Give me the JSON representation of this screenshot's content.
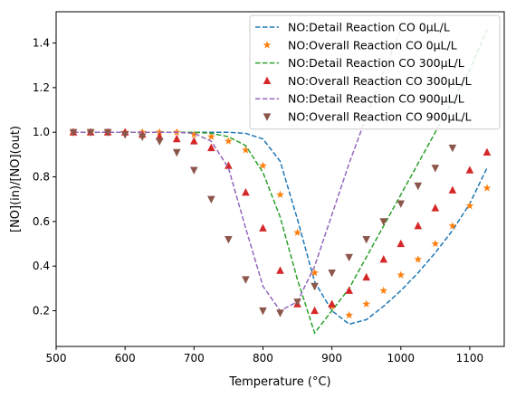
{
  "chart_data": {
    "type": "scatter",
    "xlabel": "Temperature (°C)",
    "ylabel": "[NO](in)/[NO](out)",
    "xlim": [
      500,
      1150
    ],
    "ylim": [
      0.04,
      1.54
    ],
    "xticks": [
      500,
      600,
      700,
      800,
      900,
      1000,
      1100
    ],
    "yticks": [
      0.2,
      0.4,
      0.6,
      0.8,
      1.0,
      1.2,
      1.4
    ],
    "xtick_labels": [
      "500",
      "600",
      "700",
      "800",
      "900",
      "1000",
      "1100"
    ],
    "ytick_labels": [
      "0.2",
      "0.4",
      "0.6",
      "0.8",
      "1.0",
      "1.2",
      "1.4"
    ],
    "grid": false,
    "legend_position": "top-right",
    "series": [
      {
        "name": "NO:Detail Reaction CO 0μL/L",
        "style": "dashed-line",
        "color": "#1f77b4",
        "x": [
          525,
          550,
          575,
          600,
          625,
          650,
          675,
          700,
          725,
          750,
          775,
          800,
          825,
          850,
          875,
          900,
          925,
          950,
          975,
          1000,
          1025,
          1050,
          1075,
          1100,
          1125
        ],
        "y": [
          1.0,
          1.0,
          1.0,
          1.0,
          1.0,
          1.0,
          1.0,
          1.0,
          1.0,
          1.0,
          0.995,
          0.97,
          0.87,
          0.61,
          0.33,
          0.2,
          0.14,
          0.16,
          0.22,
          0.29,
          0.37,
          0.46,
          0.56,
          0.68,
          0.84
        ]
      },
      {
        "name": "NO:Overall Reaction CO 0μL/L",
        "style": "star-markers",
        "color": "#ff7f0e",
        "x": [
          525,
          550,
          575,
          600,
          625,
          650,
          675,
          700,
          725,
          750,
          775,
          800,
          825,
          850,
          875,
          900,
          925,
          950,
          975,
          1000,
          1025,
          1050,
          1075,
          1100,
          1125
        ],
        "y": [
          1.0,
          1.0,
          1.0,
          1.0,
          1.0,
          1.0,
          1.0,
          0.99,
          0.98,
          0.96,
          0.92,
          0.85,
          0.72,
          0.55,
          0.37,
          0.22,
          0.18,
          0.23,
          0.29,
          0.36,
          0.43,
          0.5,
          0.58,
          0.67,
          0.75
        ]
      },
      {
        "name": "NO:Detail Reaction CO 300μL/L",
        "style": "dashed-line",
        "color": "#2ca02c",
        "x": [
          525,
          550,
          575,
          600,
          625,
          650,
          675,
          700,
          725,
          750,
          775,
          800,
          825,
          850,
          875,
          900,
          925,
          950,
          975,
          1000,
          1025,
          1050,
          1075,
          1100,
          1125
        ],
        "y": [
          1.0,
          1.0,
          1.0,
          1.0,
          1.0,
          1.0,
          1.0,
          1.0,
          0.995,
          0.98,
          0.94,
          0.82,
          0.62,
          0.34,
          0.1,
          0.2,
          0.3,
          0.44,
          0.58,
          0.72,
          0.86,
          1.0,
          1.14,
          1.28,
          1.46
        ]
      },
      {
        "name": "NO:Overall Reaction CO 300μL/L",
        "style": "triangle-markers",
        "color": "#d62728",
        "x": [
          525,
          550,
          575,
          600,
          625,
          650,
          675,
          700,
          725,
          750,
          775,
          800,
          825,
          850,
          875,
          900,
          925,
          950,
          975,
          1000,
          1025,
          1050,
          1075,
          1100,
          1125
        ],
        "y": [
          1.0,
          1.0,
          1.0,
          1.0,
          0.99,
          0.98,
          0.97,
          0.96,
          0.93,
          0.85,
          0.73,
          0.57,
          0.38,
          0.23,
          0.2,
          0.23,
          0.29,
          0.35,
          0.43,
          0.5,
          0.58,
          0.66,
          0.74,
          0.83,
          0.91
        ]
      },
      {
        "name": "NO:Detail Reaction CO 900μL/L",
        "style": "dashed-line",
        "color": "#9467bd",
        "x": [
          525,
          550,
          575,
          600,
          625,
          650,
          675,
          700,
          725,
          750,
          775,
          800,
          825,
          850,
          875,
          900,
          925,
          950,
          975,
          1000
        ],
        "y": [
          1.0,
          1.0,
          1.0,
          1.0,
          1.0,
          1.0,
          1.0,
          0.995,
          0.96,
          0.84,
          0.57,
          0.31,
          0.2,
          0.24,
          0.4,
          0.63,
          0.86,
          1.07,
          1.27,
          1.46
        ]
      },
      {
        "name": "NO:Overall Reaction CO 900μL/L",
        "style": "down-triangle-markers",
        "color": "#8c564b",
        "x": [
          525,
          550,
          575,
          600,
          625,
          650,
          675,
          700,
          725,
          750,
          775,
          800,
          825,
          850,
          875,
          900,
          925,
          950,
          975,
          1000,
          1025,
          1050,
          1075
        ],
        "y": [
          1.0,
          1.0,
          1.0,
          0.99,
          0.98,
          0.96,
          0.91,
          0.83,
          0.7,
          0.52,
          0.34,
          0.2,
          0.19,
          0.24,
          0.31,
          0.37,
          0.44,
          0.52,
          0.6,
          0.68,
          0.76,
          0.84,
          0.93
        ]
      }
    ]
  }
}
